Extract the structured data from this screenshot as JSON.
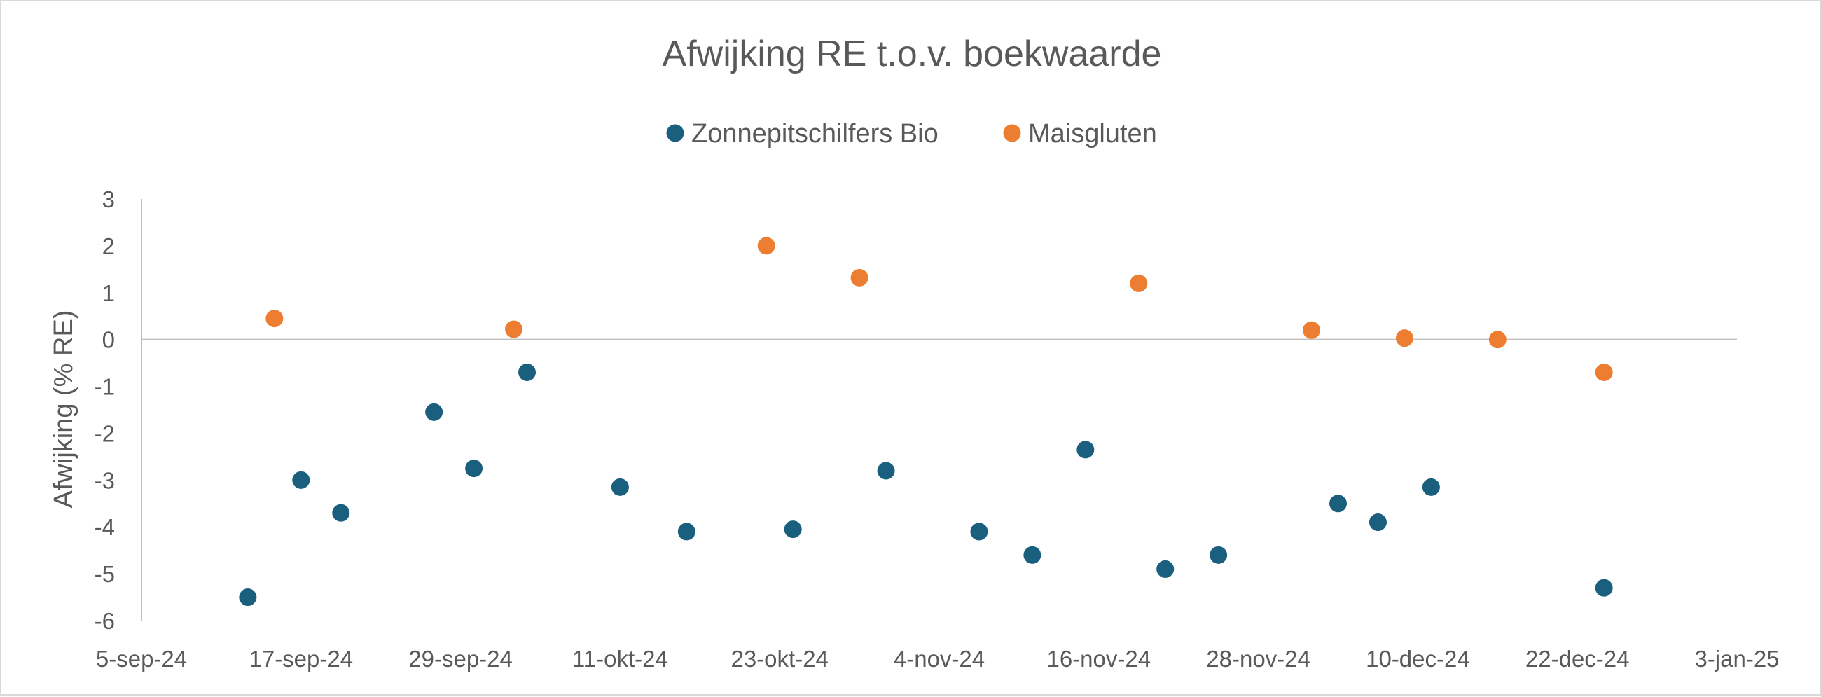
{
  "chart_data": {
    "type": "scatter",
    "title": "Afwijking RE t.o.v. boekwaarde",
    "xlabel": "",
    "ylabel": "Afwijking (% RE)",
    "xlim": [
      "2024-09-05",
      "2025-01-03"
    ],
    "ylim": [
      -6,
      3
    ],
    "x_tick_labels": [
      "5-sep-24",
      "17-sep-24",
      "29-sep-24",
      "11-okt-24",
      "23-okt-24",
      "4-nov-24",
      "16-nov-24",
      "28-nov-24",
      "10-dec-24",
      "22-dec-24",
      "3-jan-25"
    ],
    "y_tick_labels": [
      "3",
      "2",
      "1",
      "0",
      "-1",
      "-2",
      "-3",
      "-4",
      "-5",
      "-6"
    ],
    "grid": false,
    "legend_position": "top",
    "series": [
      {
        "name": "Zonnepitschilfers Bio",
        "color": "#1b5f7e",
        "points": [
          {
            "x": "2024-09-13",
            "y": -5.5
          },
          {
            "x": "2024-09-17",
            "y": -3.0
          },
          {
            "x": "2024-09-20",
            "y": -3.7
          },
          {
            "x": "2024-09-27",
            "y": -1.55
          },
          {
            "x": "2024-09-30",
            "y": -2.75
          },
          {
            "x": "2024-10-04",
            "y": -0.7
          },
          {
            "x": "2024-10-11",
            "y": -3.15
          },
          {
            "x": "2024-10-16",
            "y": -4.1
          },
          {
            "x": "2024-10-24",
            "y": -4.05
          },
          {
            "x": "2024-10-31",
            "y": -2.8
          },
          {
            "x": "2024-11-07",
            "y": -4.1
          },
          {
            "x": "2024-11-11",
            "y": -4.6
          },
          {
            "x": "2024-11-15",
            "y": -2.35
          },
          {
            "x": "2024-11-21",
            "y": -4.9
          },
          {
            "x": "2024-11-25",
            "y": -4.6
          },
          {
            "x": "2024-12-04",
            "y": -3.5
          },
          {
            "x": "2024-12-07",
            "y": -3.9
          },
          {
            "x": "2024-12-11",
            "y": -3.15
          },
          {
            "x": "2024-12-24",
            "y": -5.3
          }
        ]
      },
      {
        "name": "Maisgluten",
        "color": "#ed7d31",
        "points": [
          {
            "x": "2024-09-15",
            "y": 0.45
          },
          {
            "x": "2024-10-03",
            "y": 0.22
          },
          {
            "x": "2024-10-22",
            "y": 2.0
          },
          {
            "x": "2024-10-29",
            "y": 1.32
          },
          {
            "x": "2024-11-19",
            "y": 1.2
          },
          {
            "x": "2024-12-02",
            "y": 0.2
          },
          {
            "x": "2024-12-09",
            "y": 0.03
          },
          {
            "x": "2024-12-16",
            "y": 0.0
          },
          {
            "x": "2024-12-24",
            "y": -0.7
          }
        ]
      }
    ]
  }
}
